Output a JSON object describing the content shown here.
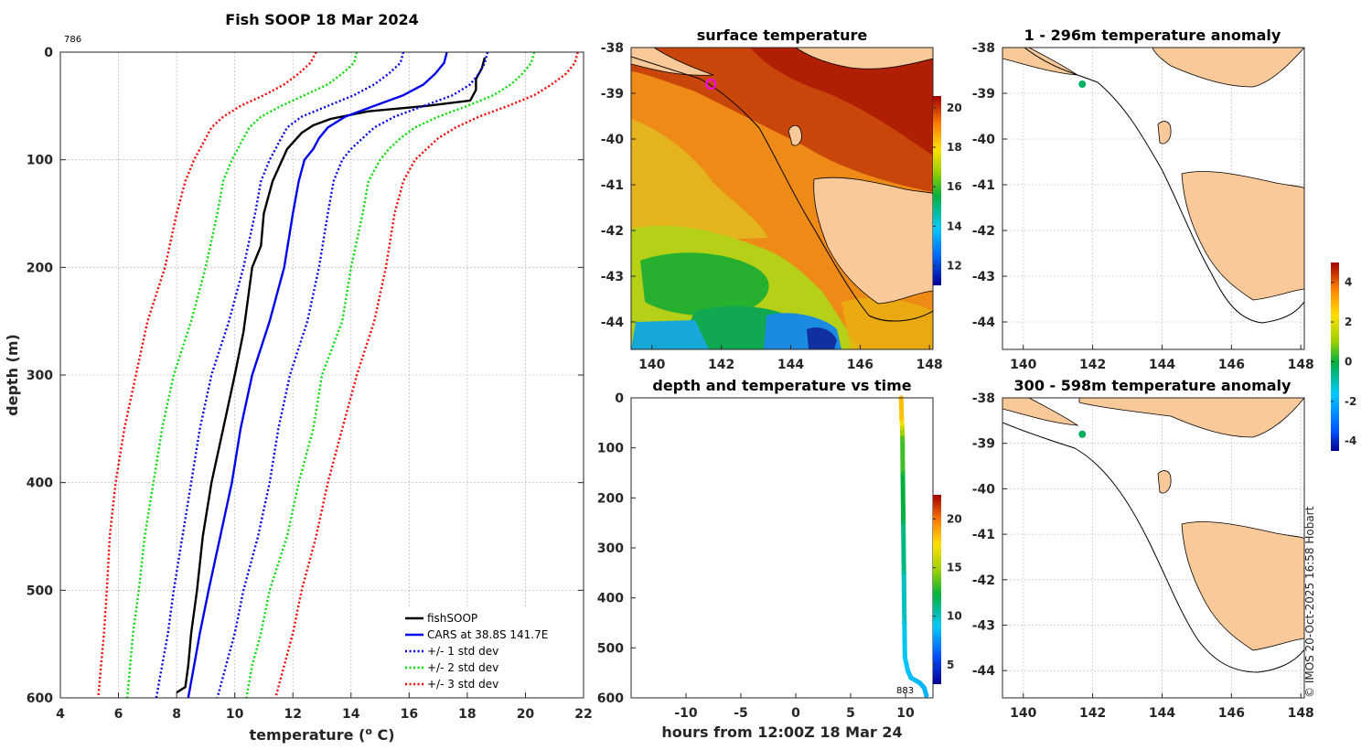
{
  "copyright": "© IMOS 20-Oct-2025 16:58 Hobart",
  "chart_data": [
    {
      "id": "profile",
      "type": "line",
      "title": "Fish SOOP 18 Mar 2024",
      "xlabel": "temperature (",
      "xlabel_sup": "o",
      "xlabel_end": " C)",
      "ylabel": "depth (m)",
      "xlim": [
        4,
        22
      ],
      "ylim": [
        0,
        600
      ],
      "y_reversed": true,
      "grid": true,
      "xticks": [
        "4",
        "6",
        "8",
        "10",
        "12",
        "14",
        "16",
        "18",
        "20",
        "22"
      ],
      "yticks": [
        "0",
        "100",
        "200",
        "300",
        "400",
        "500",
        "600"
      ],
      "annotation": "786",
      "legend_position": "bottom-right",
      "depth": [
        0,
        10,
        20,
        30,
        40,
        50,
        60,
        70,
        80,
        90,
        100,
        120,
        150,
        200,
        250,
        300,
        350,
        400,
        450,
        500,
        540,
        570,
        600
      ],
      "series": [
        {
          "name": "fishSOOP",
          "style": "solid",
          "color": "#000000",
          "points": [
            [
              18.6,
              5
            ],
            [
              18.5,
              15
            ],
            [
              18.3,
              25
            ],
            [
              18.3,
              35
            ],
            [
              18.1,
              45
            ],
            [
              16.6,
              50
            ],
            [
              14.6,
              55
            ],
            [
              13.3,
              62
            ],
            [
              12.7,
              68
            ],
            [
              12.3,
              75
            ],
            [
              11.8,
              90
            ],
            [
              11.3,
              120
            ],
            [
              11.0,
              150
            ],
            [
              10.9,
              180
            ],
            [
              10.6,
              200
            ],
            [
              10.4,
              240
            ],
            [
              10.3,
              260
            ],
            [
              10.0,
              300
            ],
            [
              9.6,
              350
            ],
            [
              9.2,
              400
            ],
            [
              8.9,
              450
            ],
            [
              8.7,
              500
            ],
            [
              8.5,
              540
            ],
            [
              8.4,
              570
            ],
            [
              8.3,
              590
            ],
            [
              8.0,
              595
            ]
          ]
        },
        {
          "name": "CARS at 38.8S 141.7E",
          "style": "solid",
          "color": "#0000ee",
          "values": [
            17.3,
            17.2,
            16.9,
            16.5,
            15.8,
            14.8,
            13.8,
            13.2,
            12.9,
            12.7,
            12.4,
            12.2,
            12.0,
            11.7,
            11.2,
            10.6,
            10.2,
            9.9,
            9.5,
            9.1,
            8.8,
            8.6,
            8.4
          ]
        },
        {
          "name": "+/- 1 std dev",
          "style": "dotted",
          "color": "#0000ee",
          "lower": [
            15.8,
            15.7,
            15.3,
            14.8,
            14.1,
            13.2,
            12.3,
            11.8,
            11.6,
            11.4,
            11.2,
            10.9,
            10.7,
            10.3,
            9.8,
            9.2,
            8.8,
            8.5,
            8.2,
            7.9,
            7.7,
            7.5,
            7.3
          ],
          "upper": [
            18.7,
            18.6,
            18.4,
            18.1,
            17.5,
            16.5,
            15.5,
            14.8,
            14.4,
            14.0,
            13.7,
            13.4,
            13.2,
            12.9,
            12.5,
            11.9,
            11.5,
            11.2,
            10.8,
            10.3,
            10.0,
            9.7,
            9.4
          ]
        },
        {
          "name": "+/- 2 std dev",
          "style": "dotted",
          "color": "#00dd00",
          "lower": [
            14.2,
            14.1,
            13.7,
            13.2,
            12.4,
            11.6,
            10.9,
            10.5,
            10.3,
            10.1,
            9.9,
            9.6,
            9.4,
            9.0,
            8.5,
            7.9,
            7.5,
            7.2,
            6.9,
            6.7,
            6.5,
            6.4,
            6.3
          ],
          "upper": [
            20.3,
            20.2,
            19.9,
            19.5,
            18.9,
            18.0,
            17.0,
            16.2,
            15.7,
            15.3,
            15.0,
            14.6,
            14.4,
            14.0,
            13.7,
            13.0,
            12.7,
            12.2,
            11.8,
            11.2,
            10.9,
            10.6,
            10.4
          ]
        },
        {
          "name": "+/- 3 std dev",
          "style": "dotted",
          "color": "#ff0000",
          "lower": [
            12.8,
            12.6,
            12.2,
            11.7,
            11.0,
            10.2,
            9.6,
            9.2,
            9.0,
            8.8,
            8.6,
            8.3,
            8.0,
            7.6,
            7.0,
            6.6,
            6.2,
            5.9,
            5.7,
            5.6,
            5.5,
            5.4,
            5.3
          ],
          "upper": [
            21.8,
            21.7,
            21.4,
            20.9,
            20.3,
            19.4,
            18.4,
            17.6,
            17.0,
            16.6,
            16.2,
            15.8,
            15.5,
            15.2,
            14.8,
            14.2,
            13.7,
            13.2,
            12.8,
            12.3,
            12.0,
            11.7,
            11.4
          ]
        }
      ]
    },
    {
      "id": "sst_map",
      "type": "heatmap",
      "title": "surface temperature",
      "xlim": [
        139.4,
        148.1
      ],
      "ylim": [
        -44.6,
        -38
      ],
      "xticks": [
        "140",
        "142",
        "144",
        "146",
        "148"
      ],
      "yticks": [
        "-38",
        "-39",
        "-40",
        "-41",
        "-42",
        "-43",
        "-44"
      ],
      "colorbar_ticks": [
        "12",
        "14",
        "16",
        "18",
        "20"
      ],
      "colorbar_range": [
        11,
        20.6
      ],
      "station": {
        "lon": 141.7,
        "lat": -38.8
      }
    },
    {
      "id": "depth_time",
      "type": "scatter",
      "title": "depth and temperature vs time",
      "xlabel": "hours from 12:00Z 18 Mar 24",
      "xlim": [
        -15,
        12.5
      ],
      "ylim": [
        0,
        600
      ],
      "y_reversed": true,
      "xticks": [
        "-10",
        "-5",
        "0",
        "5",
        "10"
      ],
      "yticks": [
        "0",
        "100",
        "200",
        "300",
        "400",
        "500",
        "600"
      ],
      "colorbar_ticks": [
        "5",
        "10",
        "15",
        "20"
      ],
      "colorbar_range": [
        3,
        22.5
      ],
      "annotation": "883",
      "points": [
        [
          9.6,
          0,
          18.5
        ],
        [
          9.65,
          40,
          18.3
        ],
        [
          9.7,
          60,
          16.0
        ],
        [
          9.72,
          80,
          13.5
        ],
        [
          9.75,
          150,
          12.5
        ],
        [
          9.8,
          250,
          11.5
        ],
        [
          9.85,
          350,
          10.5
        ],
        [
          9.9,
          450,
          9.5
        ],
        [
          9.95,
          520,
          9.0
        ],
        [
          10.2,
          545,
          8.8
        ],
        [
          10.5,
          560,
          8.7
        ],
        [
          10.9,
          565,
          8.6
        ],
        [
          11.3,
          570,
          8.6
        ],
        [
          11.7,
          580,
          8.5
        ],
        [
          11.9,
          595,
          8.4
        ]
      ]
    },
    {
      "id": "anom_upper",
      "type": "heatmap",
      "title": "1 - 296m temperature anomaly",
      "xlim": [
        139.4,
        148.1
      ],
      "ylim": [
        -44.6,
        -38
      ],
      "xticks": [
        "140",
        "142",
        "144",
        "146",
        "148"
      ],
      "yticks": [
        "-38",
        "-39",
        "-40",
        "-41",
        "-42",
        "-43",
        "-44"
      ],
      "station": {
        "lon": 141.7,
        "lat": -38.8
      }
    },
    {
      "id": "anom_lower",
      "type": "heatmap",
      "title": "300 - 598m temperature anomaly",
      "xlim": [
        139.4,
        148.1
      ],
      "ylim": [
        -44.6,
        -38
      ],
      "xticks": [
        "140",
        "142",
        "144",
        "146",
        "148"
      ],
      "yticks": [
        "-38",
        "-39",
        "-40",
        "-41",
        "-42",
        "-43",
        "-44"
      ],
      "colorbar_ticks": [
        "4",
        "2",
        "0",
        "-2",
        "-4"
      ],
      "colorbar_range": [
        -4.5,
        5.0
      ],
      "station": {
        "lon": 141.7,
        "lat": -38.8
      }
    }
  ]
}
